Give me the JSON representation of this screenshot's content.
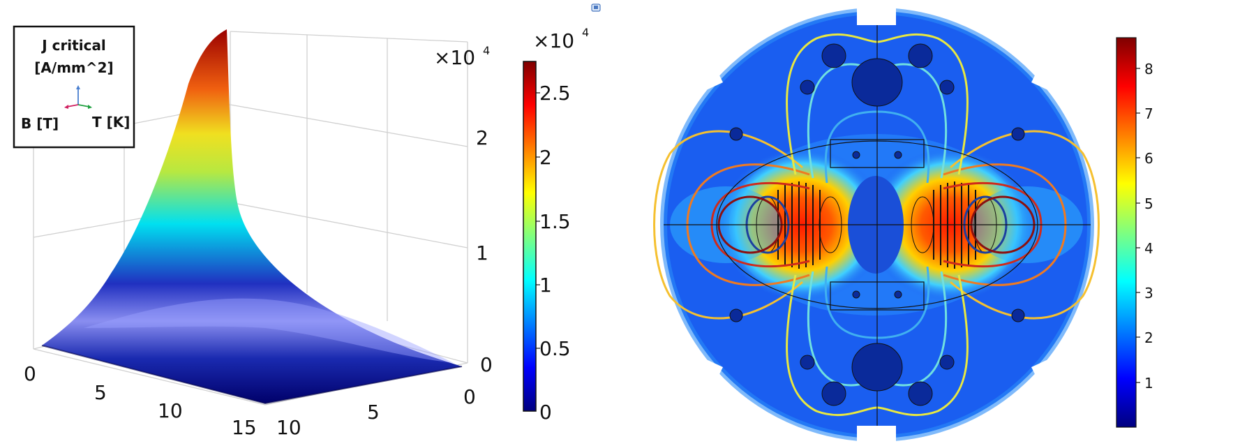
{
  "legend": {
    "title_line1": "J critical",
    "title_line2": "[A/mm^2]",
    "axis_b": "B [T]",
    "axis_t": "T [K]"
  },
  "left_plot": {
    "z_multiplier": "×10",
    "z_multiplier_exp": "4",
    "z_ticks": [
      "2",
      "1",
      "0"
    ],
    "b_ticks": [
      "0",
      "5",
      "10",
      "15"
    ],
    "t_ticks": [
      "10",
      "5",
      "0"
    ]
  },
  "left_colorbar": {
    "multiplier": "×10",
    "multiplier_exp": "4",
    "ticks": [
      "2.5",
      "2",
      "1.5",
      "1",
      "0.5",
      "0"
    ],
    "colors": [
      "#00007f",
      "#0000ff",
      "#007fff",
      "#00ffff",
      "#7fff7f",
      "#ffff00",
      "#ff7f00",
      "#ff0000",
      "#7f0000"
    ]
  },
  "right_colorbar": {
    "ticks": [
      "8",
      "7",
      "6",
      "5",
      "4",
      "3",
      "2",
      "1"
    ],
    "colors": [
      "#00007f",
      "#0000ff",
      "#007fff",
      "#00ffff",
      "#7fff7f",
      "#ffff00",
      "#ff7f00",
      "#ff0000",
      "#7f0000"
    ]
  },
  "cross_section": {
    "field_colors": {
      "background": "#1a5cf0",
      "hot_core": "#ff2a00",
      "warm": "#ffd000",
      "cool": "#33c8ff",
      "dark": "#0a2a9a"
    },
    "contour_colors": [
      "#8b1010",
      "#d02a1a",
      "#f07a20",
      "#f5c030",
      "#e8e840",
      "#70e0e0",
      "#40b0f0",
      "#1b3fa0"
    ]
  }
}
